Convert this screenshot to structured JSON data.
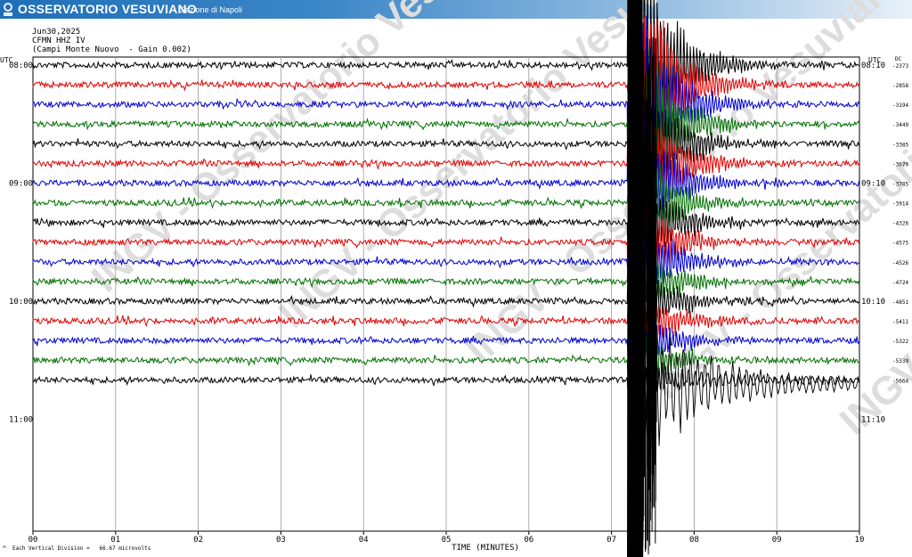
{
  "header": {
    "org_name": "OSSERVATORIO VESUVIANO",
    "section": "Sezione di Napoli",
    "date": "Jun30,2025",
    "station": "CFMN HHZ IV",
    "station_desc": "(Campi Monte Nuovo  - Gain 0.002)",
    "left_utc": "UTC",
    "right_utc": "UTC",
    "dc_label": "DC"
  },
  "watermark_text": "INGV - Osservatorio Vesuviano",
  "footer": {
    "vertical_division_note": "Each Vertical Division =   66.67 microvolts",
    "corner_mark": "^"
  },
  "chart_data": {
    "type": "line",
    "xlabel": "TIME (MINUTES)",
    "x_ticks": [
      "00",
      "01",
      "02",
      "03",
      "04",
      "05",
      "06",
      "07",
      "08",
      "09",
      "10"
    ],
    "xlim": [
      0,
      10
    ],
    "left_time_labels": [
      {
        "row": 0,
        "text": "08:00"
      },
      {
        "row": 6,
        "text": "09:00"
      },
      {
        "row": 12,
        "text": "10:00"
      },
      {
        "row": 18,
        "text": "11:00"
      }
    ],
    "right_time_labels": [
      {
        "row": 0,
        "text": "08:10"
      },
      {
        "row": 6,
        "text": "09:10"
      },
      {
        "row": 12,
        "text": "10:10"
      },
      {
        "row": 18,
        "text": "11:10"
      }
    ],
    "row_colors": [
      "#000000",
      "#e00000",
      "#0000d0",
      "#007000"
    ],
    "dc_offsets": [
      "-2373",
      "-2858",
      "-3194",
      "-3449",
      "-3385",
      "-3670",
      "-3785",
      "-3914",
      "-4326",
      "-4575",
      "-4526",
      "-4724",
      "-4851",
      "-5411",
      "-5322",
      "-5339",
      "-5664"
    ],
    "event": {
      "start_minute": 7.2,
      "peak_minute": 7.35
    }
  }
}
